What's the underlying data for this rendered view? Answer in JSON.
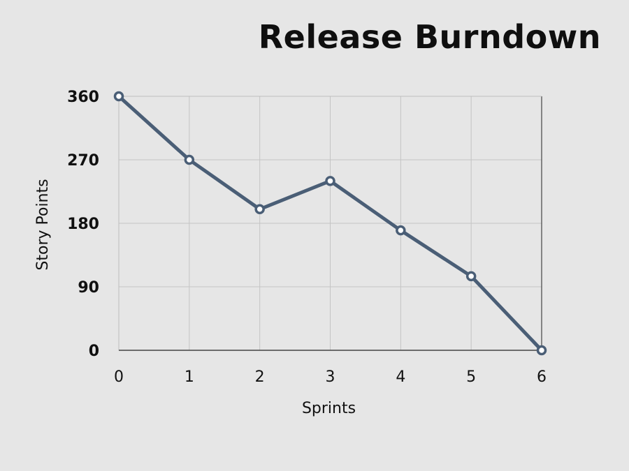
{
  "chart_data": {
    "type": "line",
    "title": "Release Burndown",
    "xlabel": "Sprints",
    "ylabel": "Story Points",
    "x": [
      0,
      1,
      2,
      3,
      4,
      5,
      6
    ],
    "series": [
      {
        "values": [
          360,
          270,
          200,
          240,
          170,
          105,
          0
        ]
      }
    ],
    "xlim": [
      0,
      6
    ],
    "ylim": [
      0,
      360
    ],
    "xticks": [
      "0",
      "1",
      "2",
      "3",
      "4",
      "5",
      "6"
    ],
    "yticks": [
      "0",
      "90",
      "180",
      "270",
      "360"
    ],
    "grid": true,
    "colors": {
      "line": "#4a5e76",
      "marker_fill": "#ffffff",
      "grid": "#c4c4c4",
      "axis": "#444444",
      "background": "#e6e6e6"
    }
  }
}
